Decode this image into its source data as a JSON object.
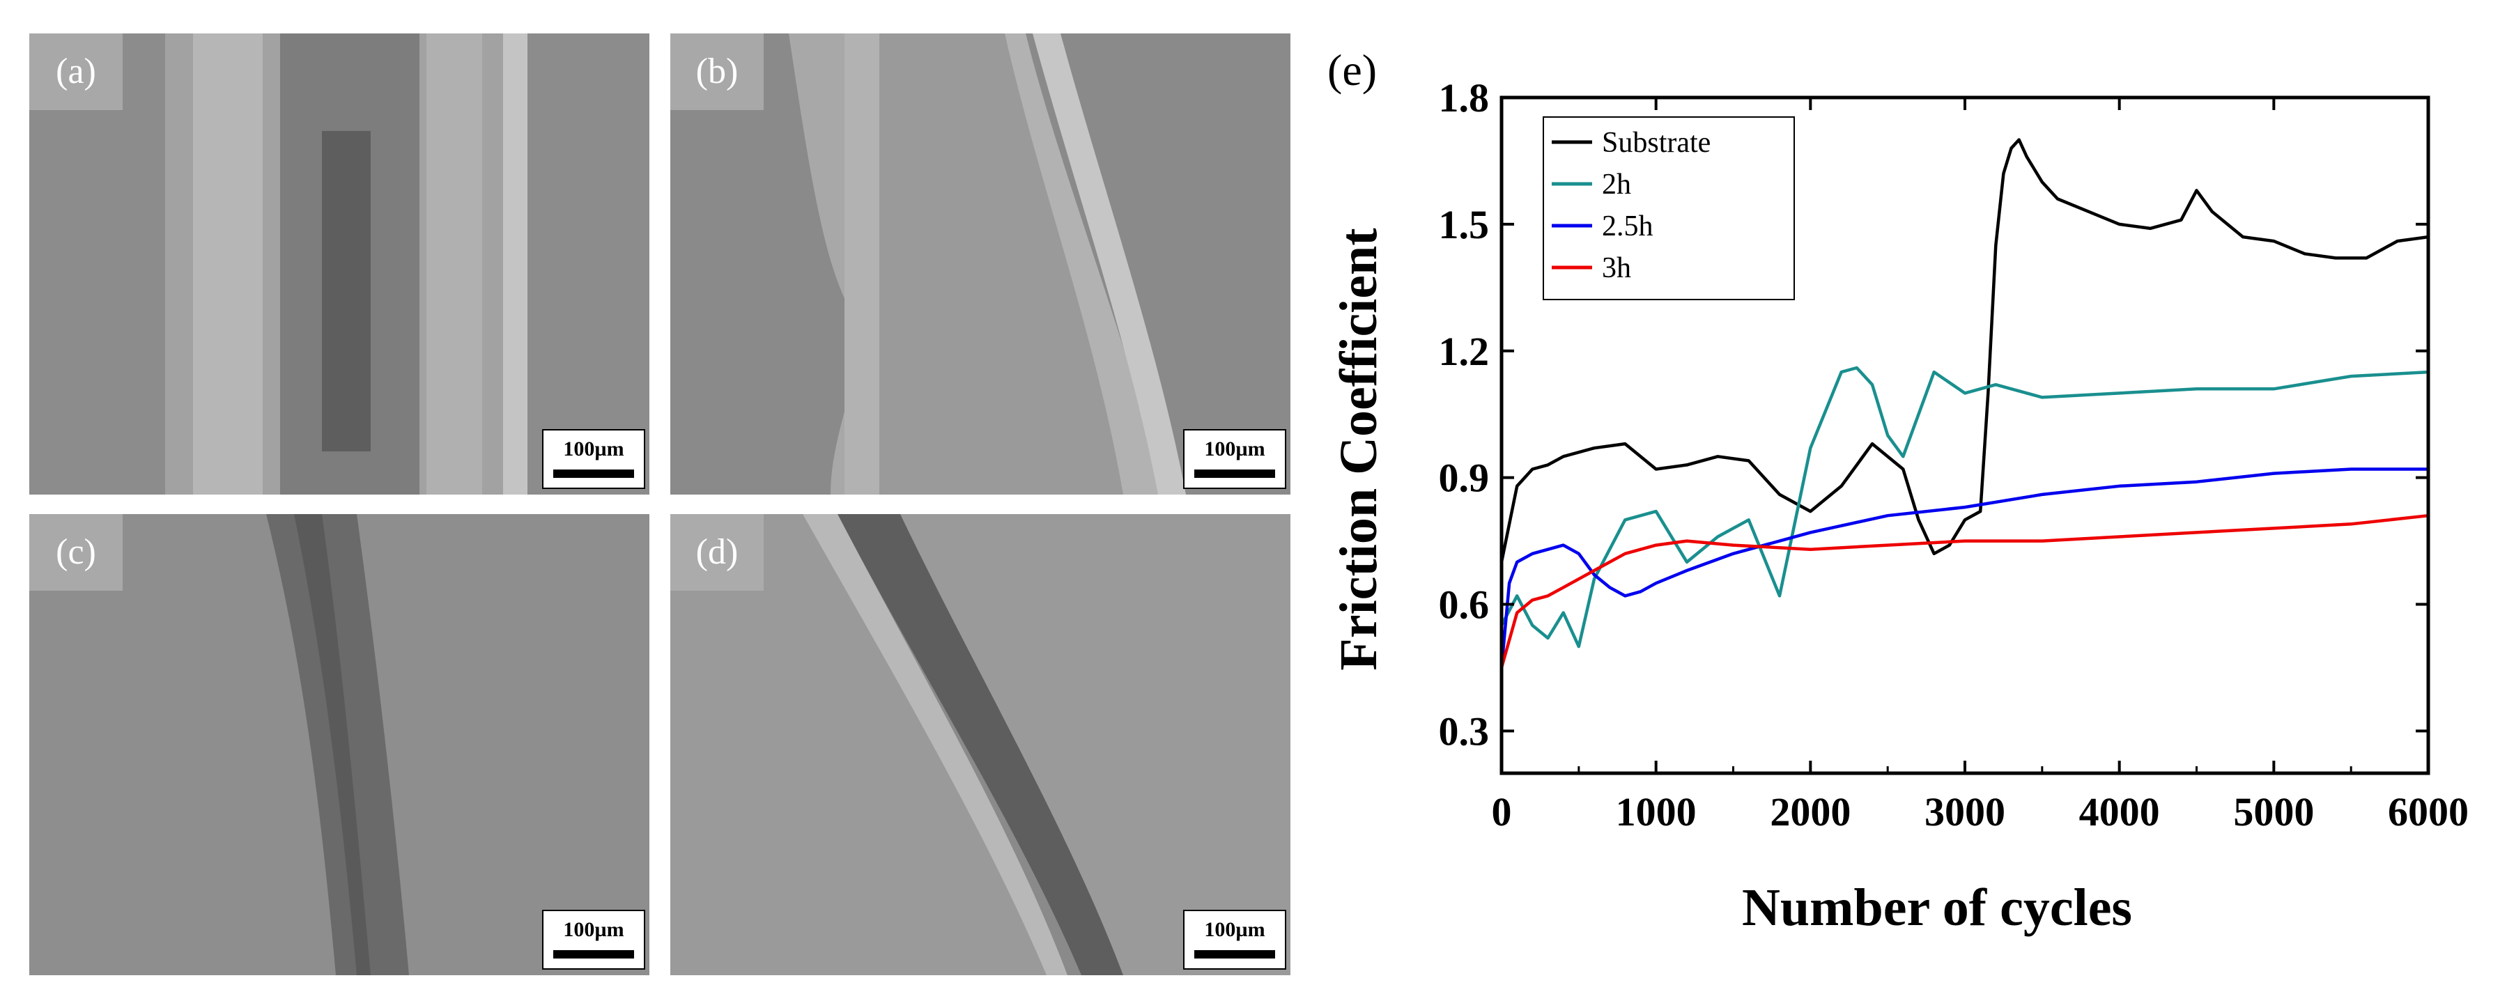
{
  "figure": {
    "panels": [
      {
        "label": "(a)",
        "scale": "100µm"
      },
      {
        "label": "(b)",
        "scale": "100µm"
      },
      {
        "label": "(c)",
        "scale": "100µm"
      },
      {
        "label": "(d)",
        "scale": "100µm"
      }
    ],
    "chart_label": "(e)"
  },
  "chart_data": {
    "type": "line",
    "xlabel": "Number of cycles",
    "ylabel": "Friction Coefficient",
    "xlim": [
      0,
      6000
    ],
    "ylim": [
      0.2,
      1.8
    ],
    "xticks": [
      "0",
      "1000",
      "2000",
      "3000",
      "4000",
      "5000",
      "6000"
    ],
    "yticks": [
      "0.3",
      "0.6",
      "0.9",
      "1.2",
      "1.5",
      "1.8"
    ],
    "legend_position": "top-left",
    "grid": false,
    "series": [
      {
        "name": "Substrate",
        "color": "#000000",
        "x": [
          0,
          100,
          200,
          300,
          400,
          600,
          800,
          1000,
          1200,
          1400,
          1600,
          1800,
          2000,
          2200,
          2400,
          2600,
          2700,
          2800,
          2900,
          3000,
          3100,
          3150,
          3200,
          3250,
          3300,
          3350,
          3400,
          3500,
          3600,
          3800,
          4000,
          4200,
          4400,
          4500,
          4600,
          4800,
          5000,
          5200,
          5400,
          5600,
          5800,
          6000
        ],
        "y": [
          0.7,
          0.88,
          0.92,
          0.93,
          0.95,
          0.97,
          0.98,
          0.92,
          0.93,
          0.95,
          0.94,
          0.86,
          0.82,
          0.88,
          0.98,
          0.92,
          0.8,
          0.72,
          0.74,
          0.8,
          0.82,
          1.1,
          1.45,
          1.62,
          1.68,
          1.7,
          1.66,
          1.6,
          1.56,
          1.53,
          1.5,
          1.49,
          1.51,
          1.58,
          1.53,
          1.47,
          1.46,
          1.43,
          1.42,
          1.42,
          1.46,
          1.47
        ]
      },
      {
        "name": "2h",
        "color": "#1a8f8f",
        "x": [
          0,
          100,
          200,
          300,
          400,
          500,
          600,
          800,
          1000,
          1200,
          1400,
          1600,
          1800,
          2000,
          2200,
          2300,
          2400,
          2500,
          2600,
          2700,
          2800,
          3000,
          3200,
          3500,
          4000,
          4500,
          5000,
          5500,
          6000
        ],
        "y": [
          0.55,
          0.62,
          0.55,
          0.52,
          0.58,
          0.5,
          0.66,
          0.8,
          0.82,
          0.7,
          0.76,
          0.8,
          0.62,
          0.97,
          1.15,
          1.16,
          1.12,
          1.0,
          0.95,
          1.05,
          1.15,
          1.1,
          1.12,
          1.09,
          1.1,
          1.11,
          1.11,
          1.14,
          1.15
        ]
      },
      {
        "name": "2.5h",
        "color": "#0000ee",
        "x": [
          0,
          50,
          100,
          200,
          300,
          400,
          500,
          600,
          700,
          800,
          900,
          1000,
          1200,
          1500,
          2000,
          2500,
          3000,
          3500,
          4000,
          4500,
          5000,
          5500,
          6000
        ],
        "y": [
          0.45,
          0.65,
          0.7,
          0.72,
          0.73,
          0.74,
          0.72,
          0.67,
          0.64,
          0.62,
          0.63,
          0.65,
          0.68,
          0.72,
          0.77,
          0.81,
          0.83,
          0.86,
          0.88,
          0.89,
          0.91,
          0.92,
          0.92
        ]
      },
      {
        "name": "3h",
        "color": "#ee0000",
        "x": [
          0,
          100,
          200,
          300,
          400,
          600,
          800,
          1000,
          1200,
          1500,
          2000,
          2500,
          3000,
          3500,
          4000,
          4500,
          5000,
          5500,
          6000
        ],
        "y": [
          0.45,
          0.58,
          0.61,
          0.62,
          0.64,
          0.68,
          0.72,
          0.74,
          0.75,
          0.74,
          0.73,
          0.74,
          0.75,
          0.75,
          0.76,
          0.77,
          0.78,
          0.79,
          0.81
        ]
      }
    ]
  }
}
